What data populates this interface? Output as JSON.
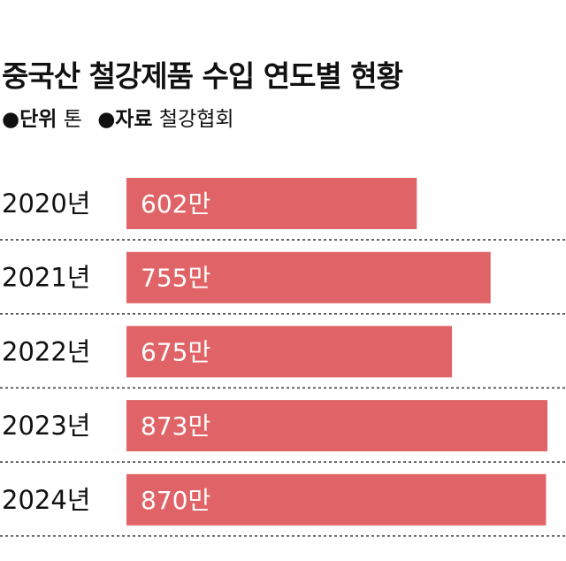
{
  "chart_data": {
    "type": "bar",
    "orientation": "horizontal",
    "title": "중국산 철강제품 수입 연도별 현황",
    "unit_label": "●단위",
    "unit": "톤",
    "source_label": "●자료",
    "source": "철강협회",
    "categories": [
      "2020년",
      "2021년",
      "2022년",
      "2023년",
      "2024년"
    ],
    "values": [
      602,
      755,
      675,
      873,
      870
    ],
    "value_labels": [
      "602만",
      "755만",
      "675만",
      "873만",
      "870만"
    ],
    "color": "#e06467"
  }
}
